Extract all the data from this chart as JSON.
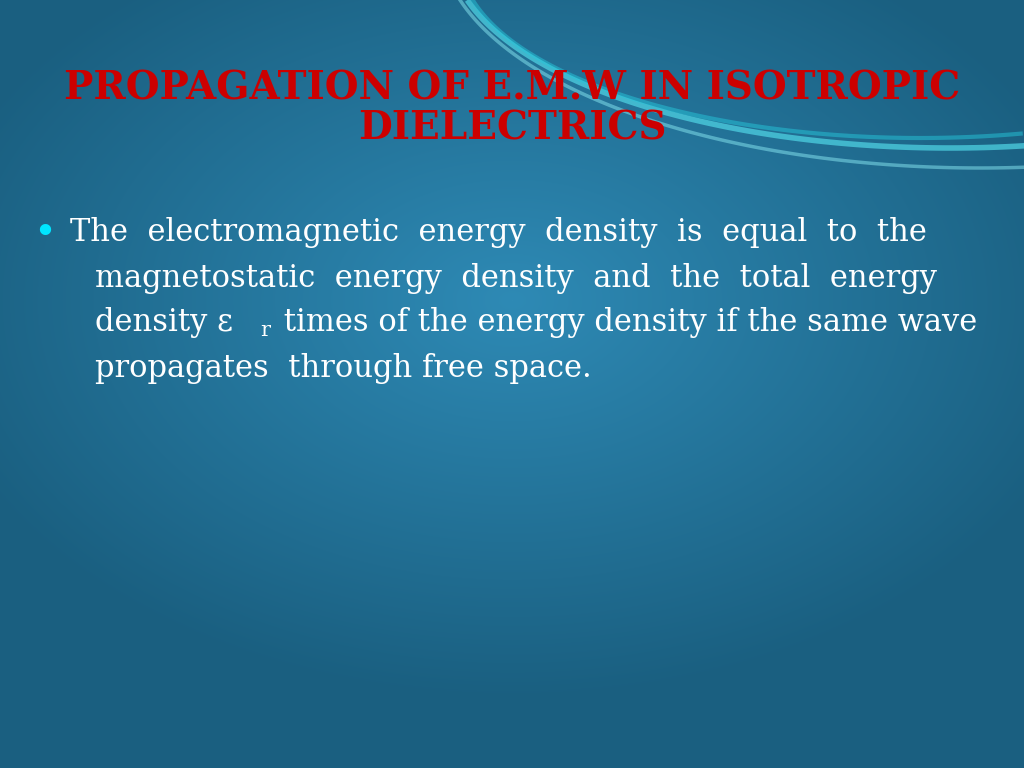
{
  "title_line1": "PROPAGATION OF E.M.W IN ISOTROPIC",
  "title_line2": "DIELECTRICS",
  "title_color": "#cc0000",
  "title_fontsize": 28,
  "bullet_color": "#00e5ff",
  "text_color": "#ffffff",
  "text_fontsize": 22,
  "bg_color_center": "#2e8ab5",
  "bg_color_edge": "#1a5f80",
  "bullet_text_line1": "The  electromagnetic  energy  density  is  equal  to  the",
  "bullet_text_line2": "magnetostatic  energy  density  and  the  total  energy",
  "bullet_text_line3_pre": "density ε",
  "bullet_text_line3_sub": "r",
  "bullet_text_line3_post": " times of the energy density if the same wave",
  "bullet_text_line4": "propagates  through free space.",
  "wave_color1": "#4dd0e1",
  "wave_color2": "#80deea",
  "wave_color3": "#26c6da"
}
